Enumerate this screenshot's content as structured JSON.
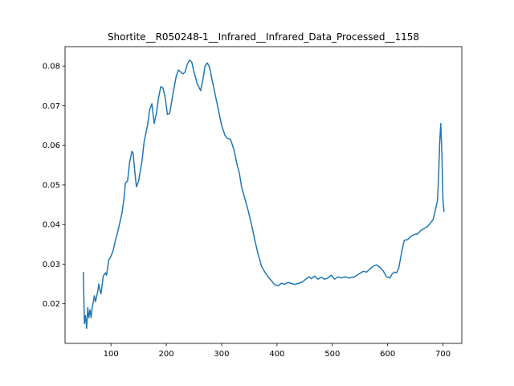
{
  "chart_data": {
    "type": "line",
    "title": "Shortite__R050248-1__Infrared__Infrared_Data_Processed__1158",
    "x": [
      50,
      52,
      54,
      56,
      58,
      60,
      62,
      64,
      66,
      70,
      72,
      76,
      78,
      80,
      82,
      86,
      90,
      92,
      96,
      100,
      104,
      108,
      112,
      116,
      120,
      124,
      126,
      130,
      134,
      138,
      140,
      144,
      146,
      150,
      156,
      160,
      166,
      170,
      174,
      178,
      182,
      186,
      190,
      194,
      198,
      202,
      206,
      212,
      218,
      222,
      226,
      230,
      234,
      238,
      242,
      246,
      250,
      256,
      262,
      266,
      270,
      274,
      278,
      282,
      288,
      294,
      300,
      306,
      310,
      316,
      322,
      328,
      332,
      336,
      342,
      348,
      354,
      360,
      366,
      372,
      378,
      384,
      390,
      396,
      402,
      408,
      414,
      420,
      426,
      432,
      440,
      446,
      452,
      458,
      462,
      468,
      474,
      480,
      486,
      492,
      498,
      504,
      510,
      516,
      524,
      530,
      540,
      548,
      556,
      562,
      568,
      574,
      580,
      586,
      592,
      598,
      604,
      608,
      612,
      616,
      620,
      626,
      630,
      636,
      642,
      648,
      654,
      660,
      666,
      672,
      678,
      682,
      686,
      690,
      692,
      694,
      696,
      698,
      700,
      702
    ],
    "values": [
      0.028,
      0.015,
      0.017,
      0.0138,
      0.019,
      0.0165,
      0.0185,
      0.0165,
      0.019,
      0.022,
      0.0205,
      0.023,
      0.025,
      0.0235,
      0.0225,
      0.027,
      0.0278,
      0.0272,
      0.031,
      0.032,
      0.0335,
      0.036,
      0.038,
      0.0405,
      0.043,
      0.047,
      0.0505,
      0.051,
      0.056,
      0.0585,
      0.058,
      0.052,
      0.0495,
      0.051,
      0.056,
      0.061,
      0.065,
      0.069,
      0.0705,
      0.0655,
      0.068,
      0.072,
      0.0748,
      0.0745,
      0.072,
      0.0678,
      0.068,
      0.073,
      0.0775,
      0.079,
      0.0785,
      0.078,
      0.0785,
      0.0805,
      0.0815,
      0.081,
      0.0785,
      0.0755,
      0.0738,
      0.0765,
      0.08,
      0.0808,
      0.0798,
      0.077,
      0.073,
      0.069,
      0.065,
      0.0625,
      0.0618,
      0.0615,
      0.059,
      0.055,
      0.053,
      0.0495,
      0.0465,
      0.0435,
      0.04,
      0.036,
      0.0325,
      0.0295,
      0.028,
      0.0268,
      0.0258,
      0.0248,
      0.0245,
      0.0252,
      0.0249,
      0.0254,
      0.0251,
      0.0249,
      0.0252,
      0.0255,
      0.0262,
      0.0268,
      0.0263,
      0.027,
      0.0262,
      0.0267,
      0.0262,
      0.0265,
      0.0272,
      0.0262,
      0.0268,
      0.0265,
      0.0268,
      0.0265,
      0.0268,
      0.0275,
      0.0282,
      0.028,
      0.0288,
      0.0295,
      0.0298,
      0.0292,
      0.0283,
      0.0268,
      0.0265,
      0.0275,
      0.028,
      0.0278,
      0.029,
      0.0335,
      0.036,
      0.0362,
      0.037,
      0.0375,
      0.0376,
      0.0385,
      0.039,
      0.0395,
      0.0405,
      0.0412,
      0.0435,
      0.046,
      0.052,
      0.0605,
      0.0655,
      0.058,
      0.046,
      0.0432
    ],
    "color": "#1f77b4",
    "xlim": [
      17,
      734
    ],
    "ylim": [
      0.01,
      0.0849
    ],
    "xticks": [
      100,
      200,
      300,
      400,
      500,
      600,
      700
    ],
    "yticks": [
      0.02,
      0.03,
      0.04,
      0.05,
      0.06,
      0.07,
      0.08
    ]
  }
}
